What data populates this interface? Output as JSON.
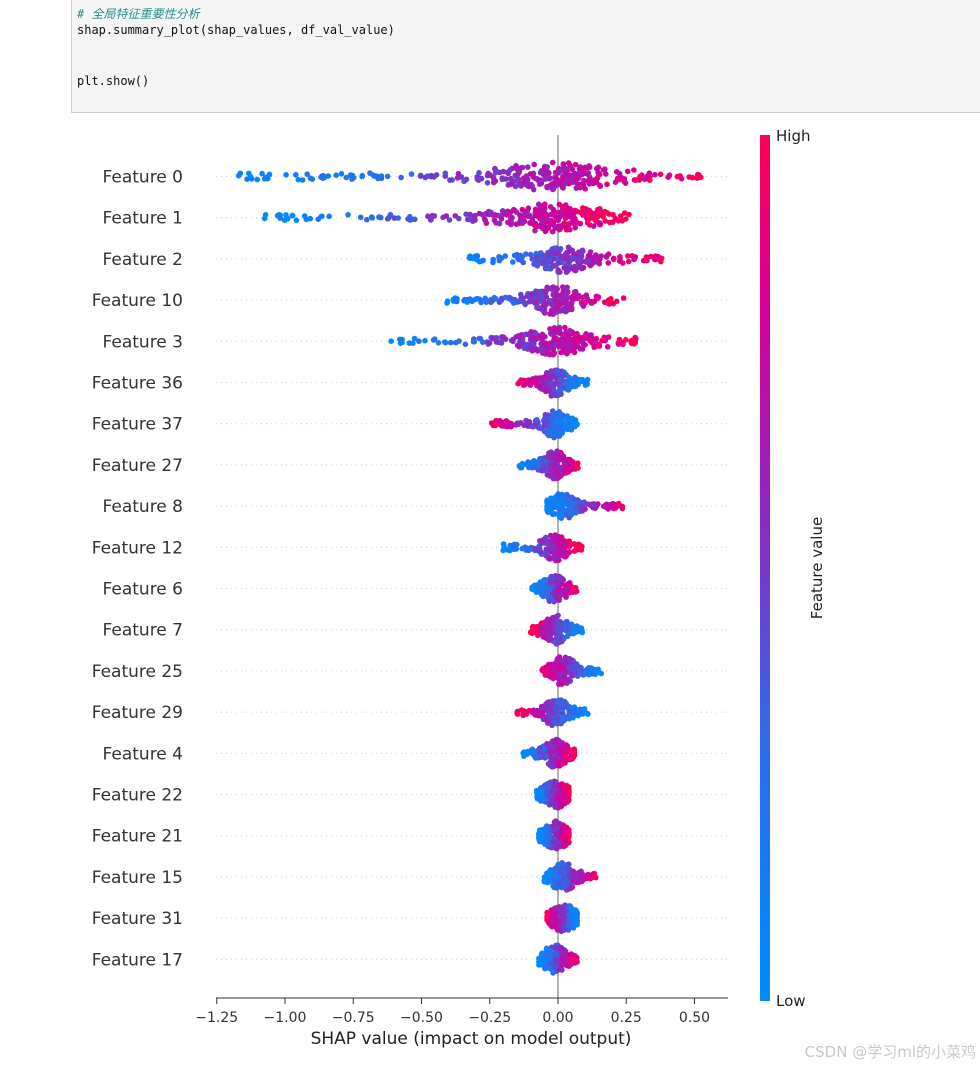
{
  "code": {
    "comment": "# 全局特征重要性分析",
    "line1": "shap.summary_plot(shap_values, df_val_value)",
    "line2": "plt.show()"
  },
  "chart_data": {
    "type": "scatter",
    "subtype": "shap_beeswarm",
    "xlabel": "SHAP value (impact on model output)",
    "xlim": [
      -1.25,
      0.62
    ],
    "xticks": [
      -1.25,
      -1.0,
      -0.75,
      -0.5,
      -0.25,
      0.0,
      0.25,
      0.5
    ],
    "xtick_labels": [
      "−1.25",
      "−1.00",
      "−0.75",
      "−0.50",
      "−0.25",
      "0.00",
      "0.25",
      "0.50"
    ],
    "colorbar": {
      "label": "Feature value",
      "high": "High",
      "low": "Low",
      "low_color": "#008afb",
      "high_color": "#ff0052"
    },
    "features": [
      {
        "name": "Feature 0",
        "min": -1.17,
        "max": 0.54,
        "low_side": "negative"
      },
      {
        "name": "Feature 1",
        "min": -1.08,
        "max": 0.26,
        "low_side": "negative"
      },
      {
        "name": "Feature 2",
        "min": -0.33,
        "max": 0.38,
        "low_side": "negative"
      },
      {
        "name": "Feature 10",
        "min": -0.42,
        "max": 0.25,
        "low_side": "negative"
      },
      {
        "name": "Feature 3",
        "min": -0.64,
        "max": 0.29,
        "low_side": "negative"
      },
      {
        "name": "Feature 36",
        "min": -0.15,
        "max": 0.11,
        "low_side": "positive"
      },
      {
        "name": "Feature 37",
        "min": -0.25,
        "max": 0.07,
        "low_side": "positive"
      },
      {
        "name": "Feature 27",
        "min": -0.15,
        "max": 0.08,
        "low_side": "negative"
      },
      {
        "name": "Feature 8",
        "min": -0.04,
        "max": 0.24,
        "low_side": "negative"
      },
      {
        "name": "Feature 12",
        "min": -0.21,
        "max": 0.09,
        "low_side": "negative"
      },
      {
        "name": "Feature 6",
        "min": -0.1,
        "max": 0.07,
        "low_side": "negative"
      },
      {
        "name": "Feature 7",
        "min": -0.1,
        "max": 0.09,
        "low_side": "positive"
      },
      {
        "name": "Feature 25",
        "min": -0.06,
        "max": 0.16,
        "low_side": "positive"
      },
      {
        "name": "Feature 29",
        "min": -0.15,
        "max": 0.11,
        "low_side": "positive"
      },
      {
        "name": "Feature 4",
        "min": -0.13,
        "max": 0.06,
        "low_side": "negative"
      },
      {
        "name": "Feature 22",
        "min": -0.08,
        "max": 0.04,
        "low_side": "negative"
      },
      {
        "name": "Feature 21",
        "min": -0.07,
        "max": 0.04,
        "low_side": "negative"
      },
      {
        "name": "Feature 15",
        "min": -0.05,
        "max": 0.14,
        "low_side": "negative"
      },
      {
        "name": "Feature 31",
        "min": -0.04,
        "max": 0.07,
        "low_side": "positive"
      },
      {
        "name": "Feature 17",
        "min": -0.07,
        "max": 0.07,
        "low_side": "negative"
      }
    ]
  },
  "watermark": "CSDN @学习ml的小菜鸡"
}
